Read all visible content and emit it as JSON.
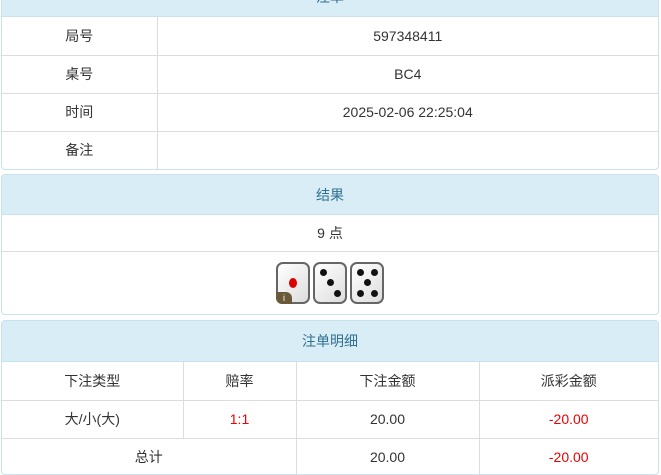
{
  "order": {
    "title": "注单",
    "rows": [
      {
        "label": "局号",
        "value": "597348411"
      },
      {
        "label": "桌号",
        "value": "BC4"
      },
      {
        "label": "时间",
        "value": "2025-02-06 22:25:04"
      },
      {
        "label": "备注",
        "value": ""
      }
    ]
  },
  "result": {
    "title": "结果",
    "points": "9 点",
    "dice": [
      1,
      3,
      5
    ],
    "info_badge": "i"
  },
  "details": {
    "title": "注单明细",
    "headers": [
      "下注类型",
      "赔率",
      "下注金额",
      "派彩金额"
    ],
    "rows": [
      {
        "type": "大/小(大)",
        "odds": "1:1",
        "bet": "20.00",
        "payout": "-20.00"
      }
    ],
    "total": {
      "label": "总计",
      "bet": "20.00",
      "payout": "-20.00"
    }
  },
  "colors": {
    "header_bg": "#d9edf7",
    "header_text": "#31708f",
    "negative": "#e00000"
  }
}
